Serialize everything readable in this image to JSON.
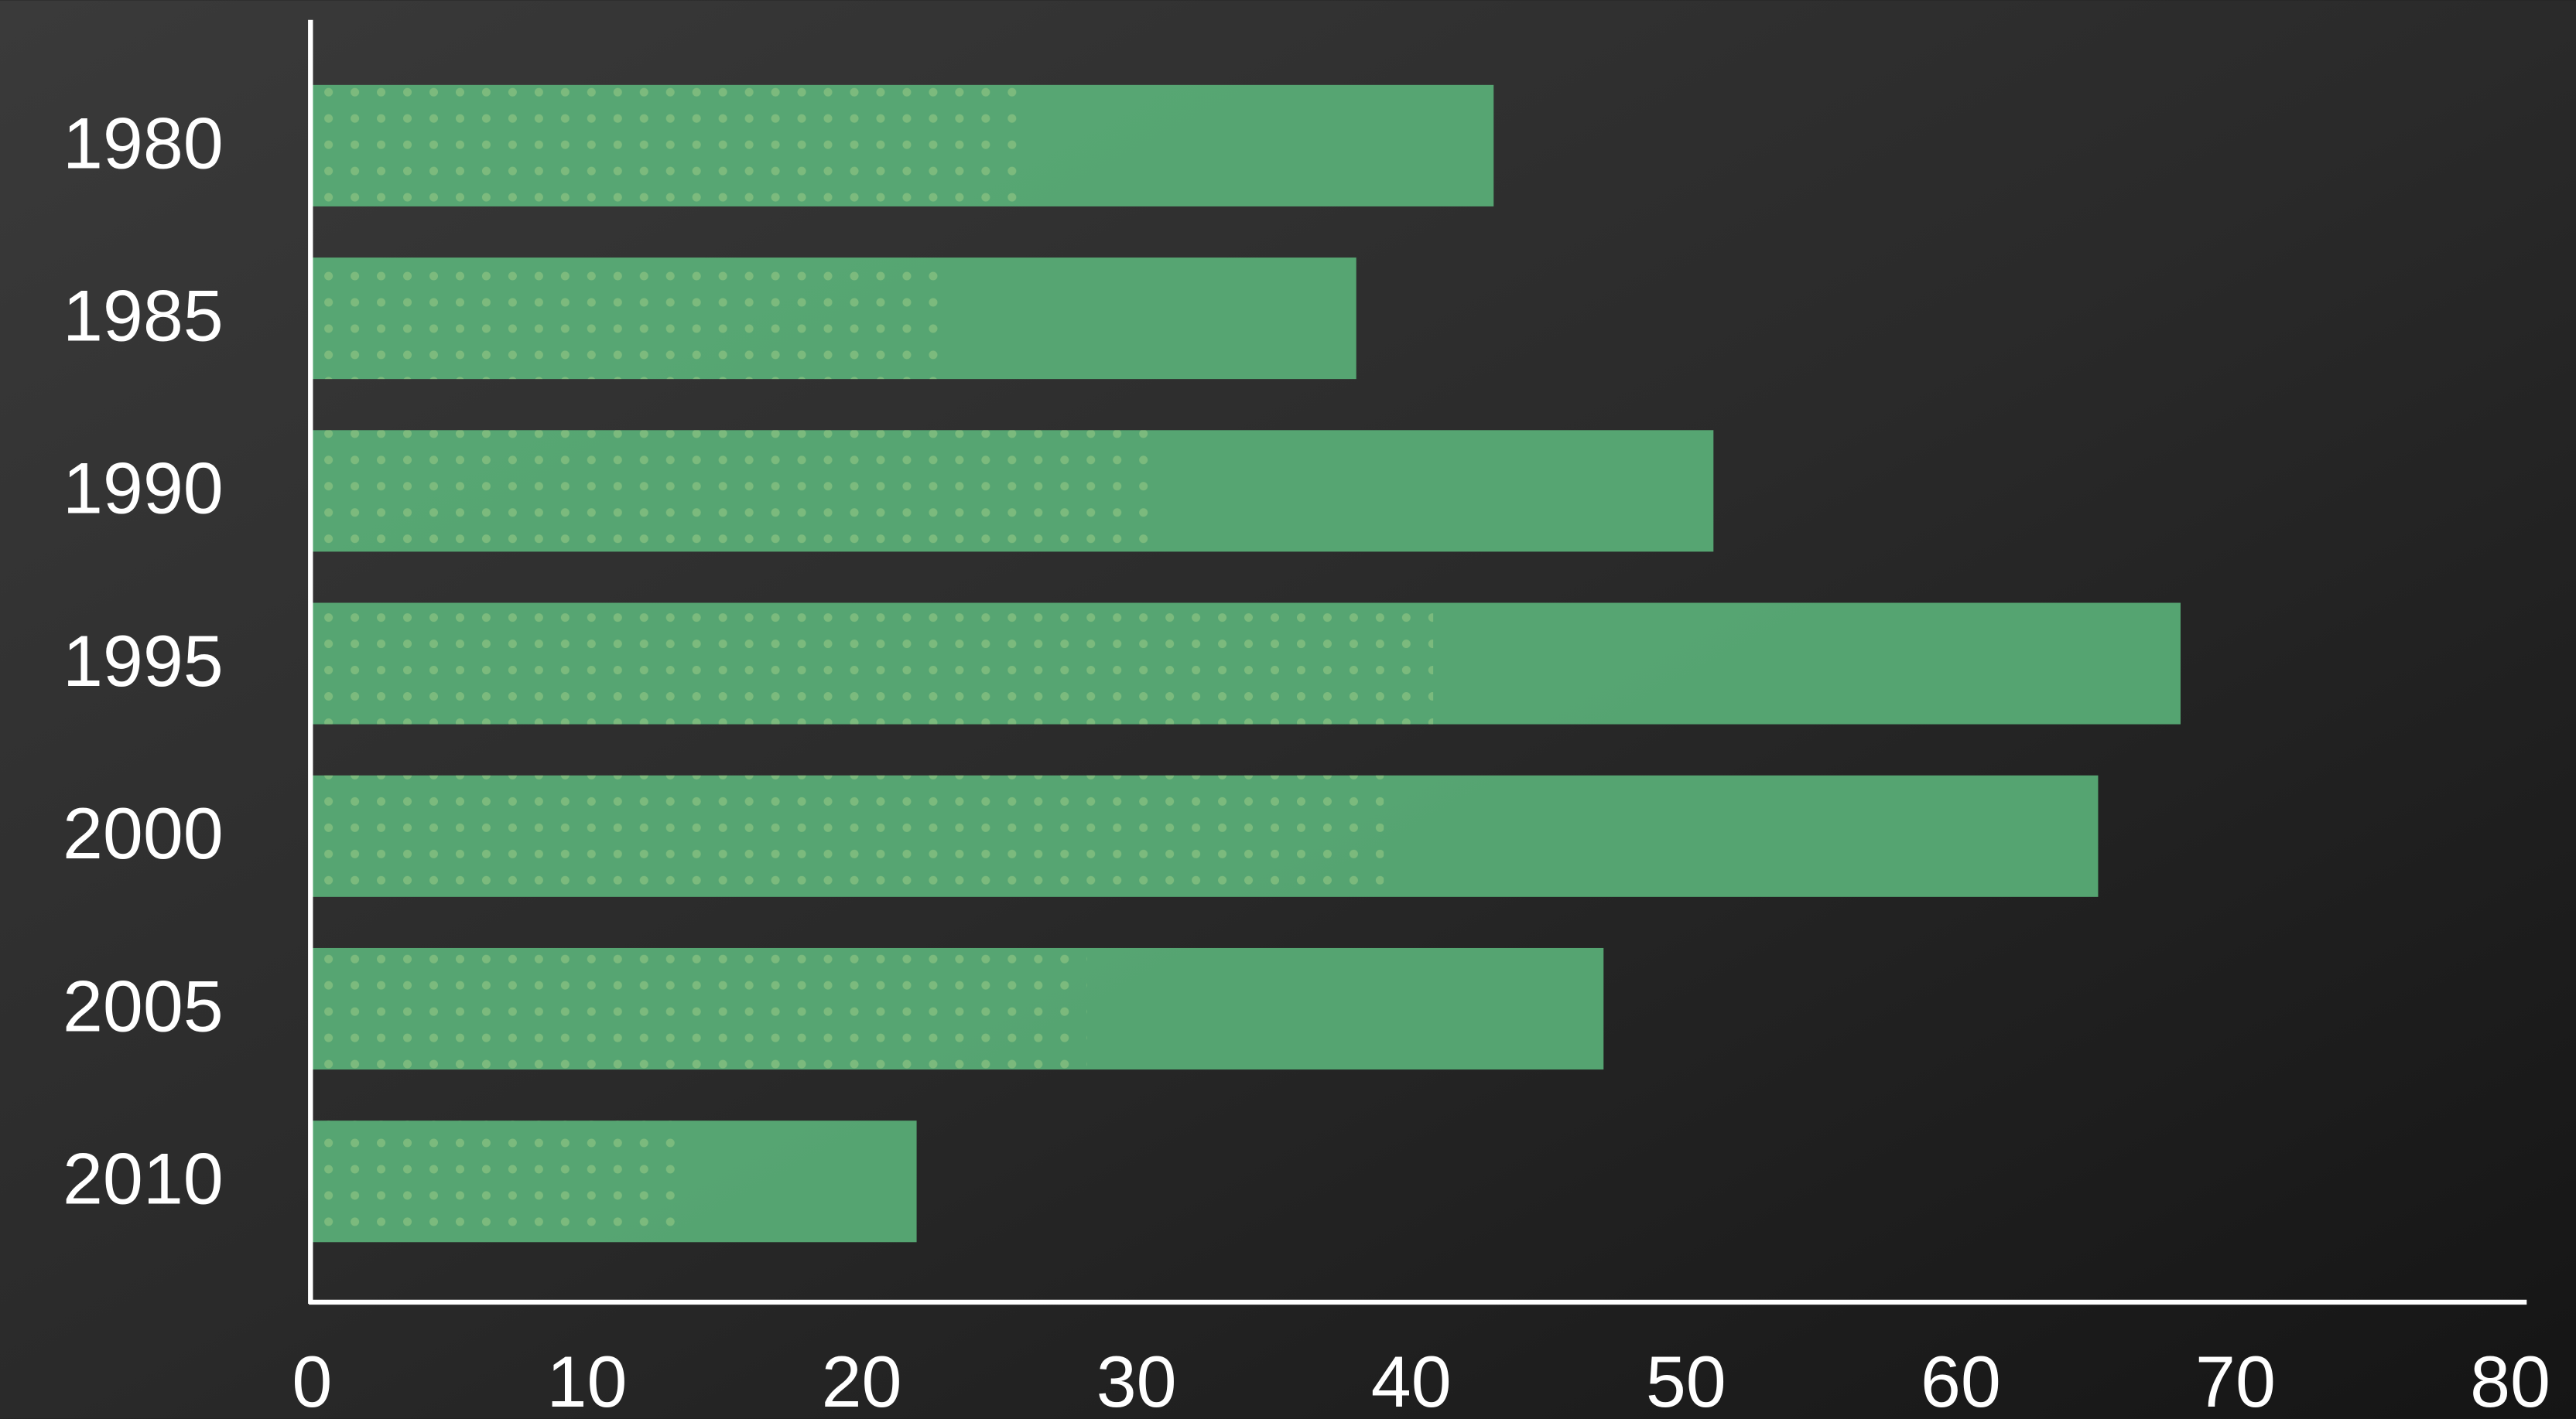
{
  "chart_data": {
    "type": "bar",
    "orientation": "horizontal",
    "categories": [
      "1980",
      "1985",
      "1990",
      "1995",
      "2000",
      "2005",
      "2010"
    ],
    "values": [
      43,
      38,
      51,
      68,
      65,
      47,
      22
    ],
    "color": "#5bb27a",
    "xlim": [
      0,
      80
    ],
    "xticks": [
      0,
      10,
      20,
      30,
      40,
      50,
      60,
      70,
      80
    ],
    "grid": false
  }
}
